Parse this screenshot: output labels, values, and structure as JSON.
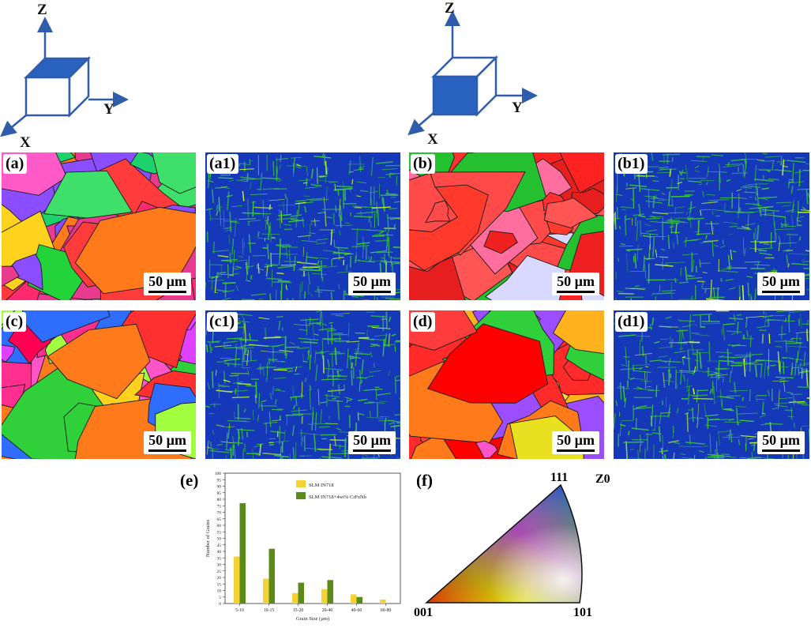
{
  "axes_left": {
    "z": "Z",
    "y": "Y",
    "x": "X"
  },
  "axes_right": {
    "z": "Z",
    "y": "Y",
    "x": "X"
  },
  "panels": [
    {
      "label": "(a)",
      "scale": "50 µm",
      "kind": "ipf-map"
    },
    {
      "label": "(a1)",
      "scale": "50 µm",
      "kind": "kam-map"
    },
    {
      "label": "(b)",
      "scale": "50 µm",
      "kind": "ipf-map"
    },
    {
      "label": "(b1)",
      "scale": "50 µm",
      "kind": "kam-map"
    },
    {
      "label": "(c)",
      "scale": "50 µm",
      "kind": "ipf-map"
    },
    {
      "label": "(c1)",
      "scale": "50 µm",
      "kind": "kam-map"
    },
    {
      "label": "(d)",
      "scale": "50 µm",
      "kind": "ipf-map"
    },
    {
      "label": "(d1)",
      "scale": "50 µm",
      "kind": "kam-map"
    }
  ],
  "panel_e_label": "(e)",
  "panel_f_label": "(f)",
  "ipf": {
    "corner_111": "111",
    "corner_001": "001",
    "corner_101": "101",
    "ref": "Z0"
  },
  "chart_data": {
    "type": "bar",
    "categories": [
      "5-10",
      "10-15",
      "15-20",
      "20-40",
      "40-60",
      "60-80"
    ],
    "series": [
      {
        "name": "SLM IN718",
        "color": "#f5d234",
        "values": [
          36,
          19,
          8,
          11,
          7,
          3
        ]
      },
      {
        "name": "SLM IN718+4wt% CrFeNb",
        "color": "#5a8a1a",
        "values": [
          77,
          42,
          16,
          18,
          5,
          0
        ]
      }
    ],
    "xlabel": "Grain Size (µm)",
    "ylabel": "Number of Grains",
    "ylim": [
      0,
      100
    ],
    "yticks": [
      "0",
      "5",
      "10",
      "15",
      "20",
      "25",
      "30",
      "35",
      "40",
      "45",
      "50",
      "55",
      "60",
      "65",
      "70",
      "75",
      "80",
      "85",
      "90",
      "95",
      "100"
    ],
    "legend_position": "top-right"
  }
}
